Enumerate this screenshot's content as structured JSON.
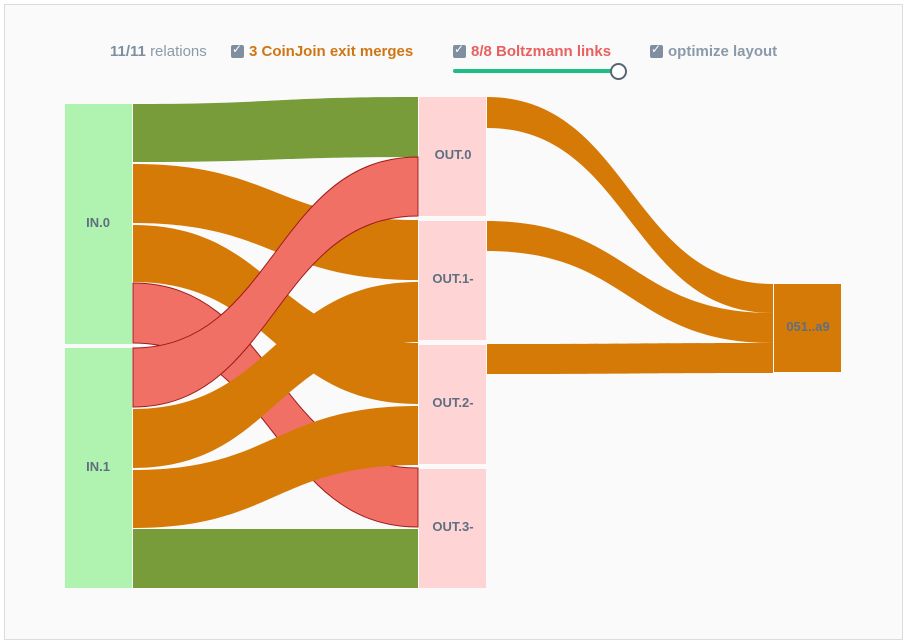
{
  "controls": {
    "relations_count": "11/11",
    "relations_label": "relations",
    "coinjoin_label": "3 CoinJoin exit merges",
    "boltzmann_label": "8/8 Boltzmann links",
    "optimize_label": "optimize layout",
    "coinjoin_checked": true,
    "boltzmann_checked": true,
    "optimize_checked": true,
    "slider_level": 1.0
  },
  "colors": {
    "input_node": "#b0f2b0",
    "output_node": "#ffd4d4",
    "green_link": "#779c39",
    "orange_link": "#d67a07",
    "red_link": "#f17066",
    "red_stroke": "#a01a1a",
    "accent_slider": "#1dbe83"
  },
  "nodes": {
    "inputs": [
      "IN.0",
      "IN.1"
    ],
    "outputs": [
      "OUT.0",
      "OUT.1-",
      "OUT.2-",
      "OUT.3-"
    ],
    "merge": "051..a9"
  },
  "links": [
    {
      "from": "IN.0",
      "to": "OUT.0",
      "type": "green"
    },
    {
      "from": "IN.0",
      "to": "OUT.1-",
      "type": "orange"
    },
    {
      "from": "IN.0",
      "to": "OUT.2-",
      "type": "orange"
    },
    {
      "from": "IN.0",
      "to": "OUT.3-",
      "type": "red"
    },
    {
      "from": "IN.1",
      "to": "OUT.0",
      "type": "red"
    },
    {
      "from": "IN.1",
      "to": "OUT.1-",
      "type": "orange"
    },
    {
      "from": "IN.1",
      "to": "OUT.2-",
      "type": "orange"
    },
    {
      "from": "IN.1",
      "to": "OUT.3-",
      "type": "green"
    },
    {
      "from": "OUT.0",
      "to": "051..a9",
      "type": "orange"
    },
    {
      "from": "OUT.1-",
      "to": "051..a9",
      "type": "orange"
    },
    {
      "from": "OUT.2-",
      "to": "051..a9",
      "type": "orange"
    }
  ]
}
